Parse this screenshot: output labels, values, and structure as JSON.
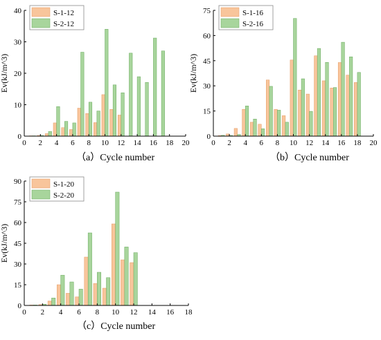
{
  "colors": {
    "series1": "#F8C59B",
    "series1_stroke": "#E59A63",
    "series2": "#A8D59C",
    "series2_stroke": "#66A85B",
    "axis": "#000000",
    "legend_border": "#8A8A8A"
  },
  "chart_data": [
    {
      "type": "bar",
      "caption": "（a）Cycle number",
      "ylabel": "Ev(kJ/m^3)",
      "xlim": [
        0,
        20
      ],
      "ylim": [
        0,
        40
      ],
      "xticks": [
        0,
        2,
        4,
        6,
        8,
        10,
        12,
        14,
        16,
        18,
        20
      ],
      "yticks": [
        0,
        10,
        20,
        30,
        40
      ],
      "legend_position": "top-left",
      "series": [
        {
          "name": "S-1-12",
          "x": [
            1,
            2,
            3,
            4,
            5,
            6,
            7,
            8,
            9,
            10,
            11,
            12
          ],
          "values": [
            0.1,
            0.2,
            0.8,
            4.2,
            2.7,
            2.1,
            8.9,
            7.2,
            4.3,
            13.2,
            8.5,
            6.7
          ]
        },
        {
          "name": "S-2-12",
          "x": [
            1,
            2,
            3,
            4,
            5,
            6,
            7,
            8,
            9,
            10,
            11,
            12,
            13,
            14,
            15,
            16,
            17
          ],
          "values": [
            0.1,
            0.2,
            1.5,
            9.4,
            4.7,
            4.2,
            26.7,
            10.8,
            8.0,
            34.0,
            16.3,
            13.8,
            26.4,
            18.9,
            17.1,
            31.2,
            27.1
          ]
        }
      ]
    },
    {
      "type": "bar",
      "caption": "（b）Cycle number",
      "ylabel": "Ev(kJ/m^3)",
      "xlim": [
        0,
        20
      ],
      "ylim": [
        0,
        75
      ],
      "xticks": [
        0,
        2,
        4,
        6,
        8,
        10,
        12,
        14,
        16,
        18,
        20
      ],
      "yticks": [
        0,
        15,
        30,
        45,
        60,
        75
      ],
      "legend_position": "top-left",
      "series": [
        {
          "name": "S-1-16",
          "x": [
            1,
            2,
            3,
            4,
            5,
            6,
            7,
            8,
            9,
            10,
            11,
            12,
            13,
            14,
            15,
            16,
            17,
            18
          ],
          "values": [
            0.3,
            1.3,
            4.6,
            16.0,
            8.3,
            7.1,
            33.5,
            16.0,
            12.2,
            45.4,
            27.5,
            25.1,
            47.9,
            33.0,
            28.7,
            43.9,
            36.4,
            32.0
          ]
        },
        {
          "name": "S-2-16",
          "x": [
            1,
            2,
            3,
            4,
            5,
            6,
            7,
            8,
            9,
            10,
            11,
            12,
            13,
            14,
            15,
            16,
            17,
            18
          ],
          "values": [
            0.5,
            0.4,
            1.0,
            18.0,
            10.2,
            4.4,
            29.7,
            15.5,
            8.3,
            70.2,
            34.2,
            14.8,
            52.3,
            44.0,
            29.0,
            56.0,
            47.3,
            38.0
          ]
        }
      ]
    },
    {
      "type": "bar",
      "caption": "（c）Cycle number",
      "ylabel": "Ev(kJ/m^3)",
      "xlim": [
        0,
        18
      ],
      "ylim": [
        0,
        90
      ],
      "xticks": [
        0,
        2,
        4,
        6,
        8,
        10,
        12,
        14,
        16,
        18
      ],
      "yticks": [
        0,
        15,
        30,
        45,
        60,
        75,
        90
      ],
      "legend_position": "top-left",
      "series": [
        {
          "name": "S-1-20",
          "x": [
            1,
            2,
            3,
            4,
            5,
            6,
            7,
            8,
            9,
            10,
            11,
            12
          ],
          "values": [
            0.3,
            0.6,
            3.2,
            15.0,
            8.8,
            6.2,
            35.0,
            15.9,
            12.5,
            59.0,
            33.0,
            31.0
          ]
        },
        {
          "name": "S-2-20",
          "x": [
            1,
            2,
            3,
            4,
            5,
            6,
            7,
            8,
            9,
            10,
            11,
            12
          ],
          "values": [
            0.3,
            0.9,
            5.4,
            21.9,
            17.0,
            11.8,
            52.5,
            24.0,
            20.1,
            82.0,
            42.3,
            38.2
          ]
        }
      ]
    }
  ]
}
